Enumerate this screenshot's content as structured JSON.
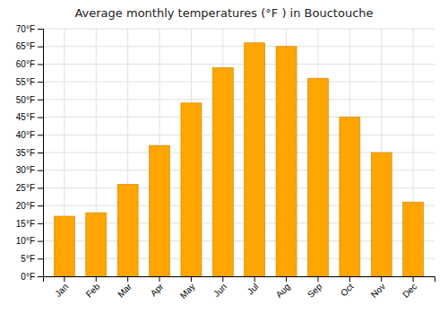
{
  "chart_data": {
    "type": "bar",
    "title": "Average monthly temperatures (°F ) in Bouctouche",
    "categories": [
      "Jan",
      "Feb",
      "Mar",
      "Apr",
      "May",
      "Jun",
      "Jul",
      "Aug",
      "Sep",
      "Oct",
      "Nov",
      "Dec"
    ],
    "values": [
      17,
      18,
      26,
      37,
      49,
      59,
      66,
      65,
      56,
      45,
      35,
      21
    ],
    "color": "#FFA500",
    "ylim": [
      0,
      70
    ],
    "yticks": [
      {
        "value": 0,
        "label": "0°F"
      },
      {
        "value": 5,
        "label": "5°F"
      },
      {
        "value": 10,
        "label": "10°F"
      },
      {
        "value": 15,
        "label": "15°F"
      },
      {
        "value": 20,
        "label": "20°F"
      },
      {
        "value": 25,
        "label": "25°F"
      },
      {
        "value": 30,
        "label": "30°F"
      },
      {
        "value": 35,
        "label": "35°F"
      },
      {
        "value": 40,
        "label": "40°F"
      },
      {
        "value": 45,
        "label": "45°F"
      },
      {
        "value": 50,
        "label": "50°F"
      },
      {
        "value": 55,
        "label": "55°F"
      },
      {
        "value": 60,
        "label": "60°F"
      },
      {
        "value": 65,
        "label": "65°F"
      },
      {
        "value": 70,
        "label": "70°F"
      }
    ],
    "grid": true
  }
}
